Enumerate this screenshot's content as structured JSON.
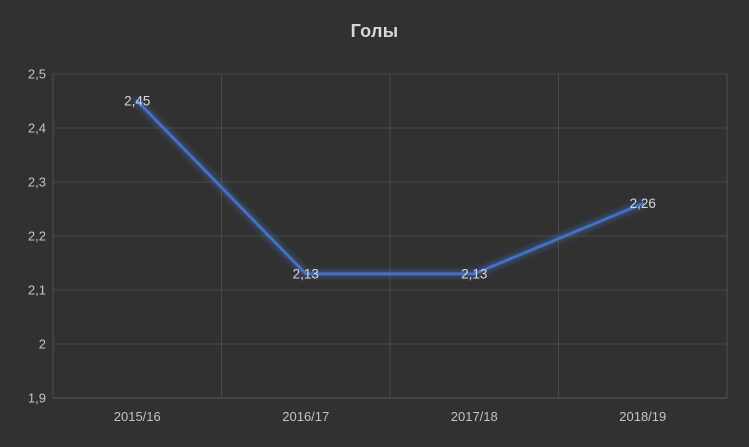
{
  "chart_data": {
    "type": "line",
    "title": "Голы",
    "categories": [
      "2015/16",
      "2016/17",
      "2017/18",
      "2018/19"
    ],
    "series": [
      {
        "name": "Голы",
        "values": [
          2.45,
          2.13,
          2.13,
          2.26
        ],
        "color": "#4472c4"
      }
    ],
    "data_labels": [
      "2,45",
      "2,13",
      "2,13",
      "2,26"
    ],
    "y_ticks": [
      {
        "value": 2.5,
        "label": "2,5"
      },
      {
        "value": 2.4,
        "label": "2,4"
      },
      {
        "value": 2.3,
        "label": "2,3"
      },
      {
        "value": 2.2,
        "label": "2,2"
      },
      {
        "value": 2.1,
        "label": "2,1"
      },
      {
        "value": 2.0,
        "label": "2"
      },
      {
        "value": 1.9,
        "label": "1,9"
      }
    ],
    "ylim": [
      1.9,
      2.5
    ],
    "grid": true,
    "legend": "none",
    "line_style": "glow",
    "marker": "none",
    "colors": {
      "background": "#313131",
      "gridline": "#494949",
      "plot_border": "#4e4e4e",
      "axis_line": "#565656",
      "tick_label": "#c3c3c3",
      "title": "#d9d9d9",
      "data_label": "#d6d6d6",
      "line": "#4472c4"
    }
  }
}
